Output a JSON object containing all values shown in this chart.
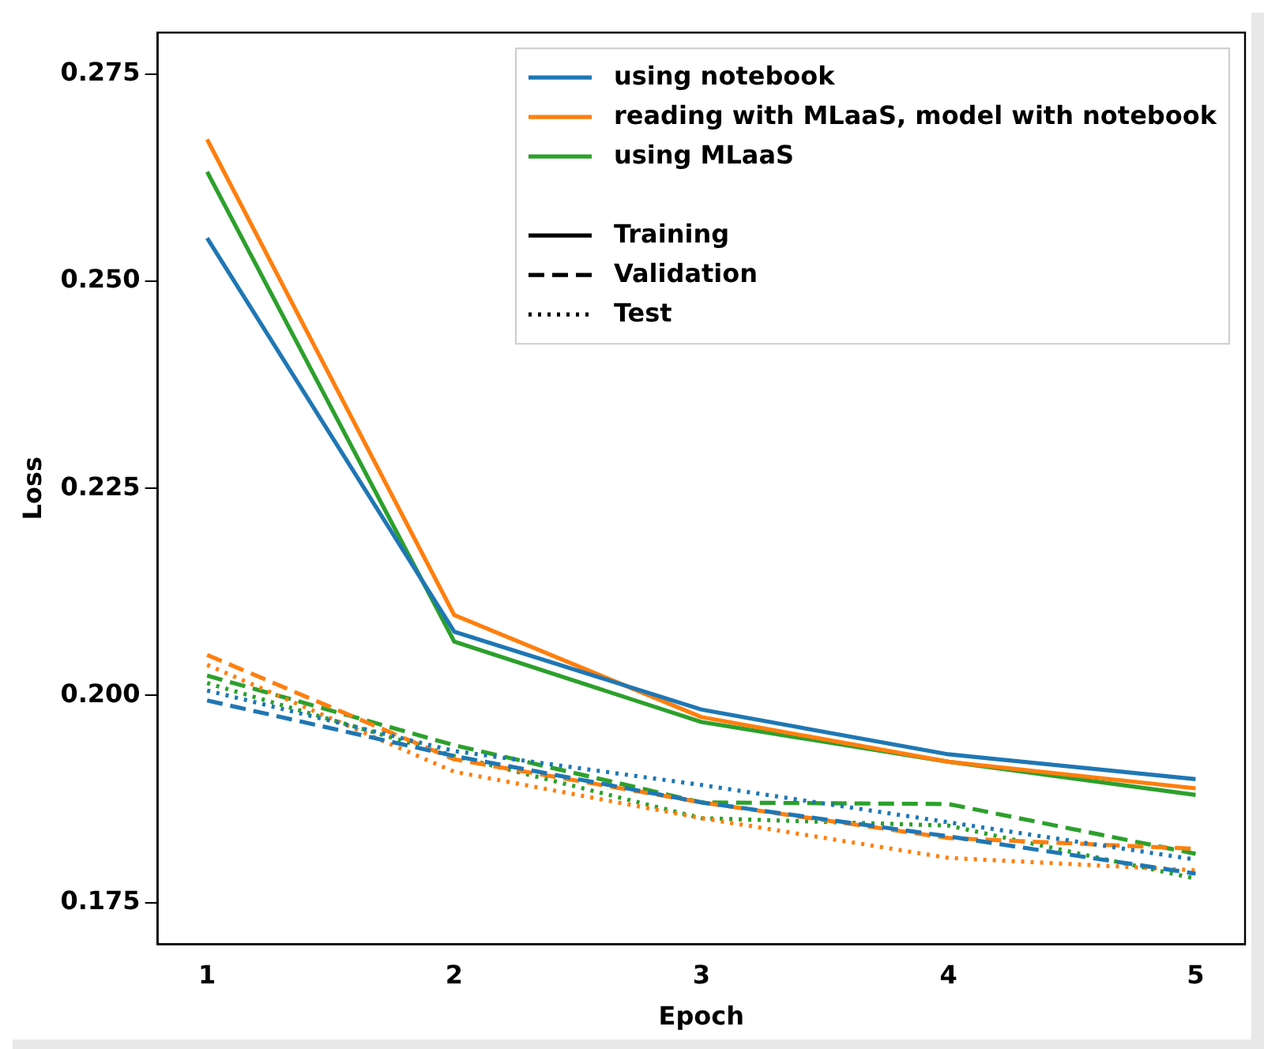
{
  "chart_data": {
    "type": "line",
    "xlabel": "Epoch",
    "ylabel": "Loss",
    "x": [
      1,
      2,
      3,
      4,
      5
    ],
    "xlim": [
      0.8,
      5.2
    ],
    "xticks": [
      1,
      2,
      3,
      4,
      5
    ],
    "ylim": [
      0.17,
      0.28
    ],
    "yticks": [
      {
        "value": 0.175,
        "label": "0.175"
      },
      {
        "value": 0.2,
        "label": "0.200"
      },
      {
        "value": 0.225,
        "label": "0.225"
      },
      {
        "value": 0.25,
        "label": "0.250"
      },
      {
        "value": 0.275,
        "label": "0.275"
      }
    ],
    "series": [
      {
        "name": "using notebook",
        "color": "#1f77b4",
        "line_style": "solid",
        "values": [
          0.2552,
          0.2077,
          0.1983,
          0.1929,
          0.1899
        ]
      },
      {
        "color": "#1f77b4",
        "line_style": "dashed",
        "values": [
          0.1994,
          0.1927,
          0.1871,
          0.183,
          0.1785
        ]
      },
      {
        "color": "#1f77b4",
        "line_style": "dotted",
        "values": [
          0.2006,
          0.1933,
          0.1892,
          0.1847,
          0.1802
        ]
      },
      {
        "name": "reading with MLaaS, model with notebook",
        "color": "#ff7f0e",
        "line_style": "solid",
        "values": [
          0.2671,
          0.2097,
          0.1974,
          0.192,
          0.1888
        ]
      },
      {
        "color": "#ff7f0e",
        "line_style": "dashed",
        "values": [
          0.2049,
          0.1923,
          0.1871,
          0.1828,
          0.1815
        ]
      },
      {
        "color": "#ff7f0e",
        "line_style": "dotted",
        "values": [
          0.2037,
          0.1908,
          0.1852,
          0.1804,
          0.1789
        ]
      },
      {
        "name": "using MLaaS",
        "color": "#2ca02c",
        "line_style": "solid",
        "values": [
          0.2632,
          0.2065,
          0.1968,
          0.192,
          0.188
        ]
      },
      {
        "color": "#2ca02c",
        "line_style": "dashed",
        "values": [
          0.2024,
          0.194,
          0.1871,
          0.1869,
          0.1809
        ]
      },
      {
        "color": "#2ca02c",
        "line_style": "dotted",
        "values": [
          0.2015,
          0.1927,
          0.1852,
          0.1843,
          0.1779
        ]
      }
    ],
    "annotations": [
      "Training",
      "Validation",
      "Test"
    ],
    "legend": "top right",
    "grid": false,
    "marker": "none"
  }
}
